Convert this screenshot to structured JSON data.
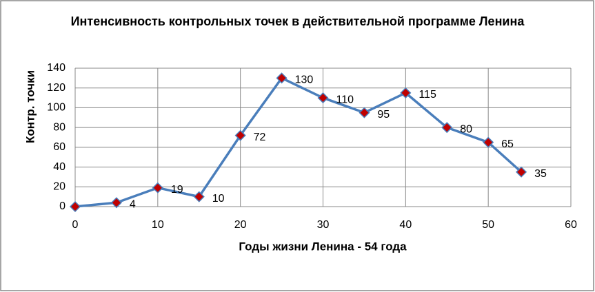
{
  "chart_data": {
    "type": "line",
    "title": "Интенсивность контрольных точек в действительной программе Ленина",
    "x_label": "Годы жизни Ленина - 54 года",
    "y_label": "Контр. точки",
    "x": [
      0,
      5,
      10,
      15,
      20,
      25,
      30,
      35,
      40,
      45,
      50,
      54
    ],
    "series": [
      {
        "name": "Контр. точки",
        "color": "#4a7ebb",
        "marker_color": "#c00000",
        "values": [
          0,
          4,
          19,
          10,
          72,
          130,
          110,
          95,
          115,
          80,
          65,
          35
        ],
        "value_labels": [
          null,
          "4",
          "19",
          "10",
          "72",
          "130",
          "110",
          "95",
          "115",
          "80",
          "65",
          "35"
        ]
      }
    ],
    "xlim": [
      0,
      60
    ],
    "xticks": [
      0,
      10,
      20,
      30,
      40,
      50,
      60
    ],
    "ylim": [
      0,
      140
    ],
    "yticks": [
      0,
      20,
      40,
      60,
      80,
      100,
      120,
      140
    ],
    "grid": true
  }
}
